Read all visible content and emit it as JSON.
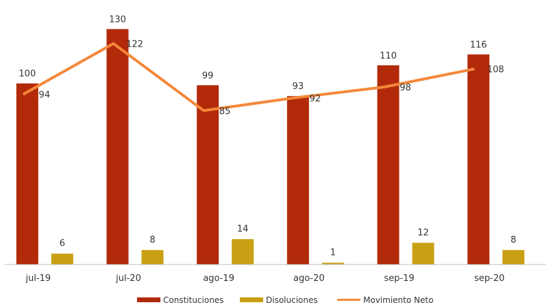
{
  "chart_data": {
    "type": "bar",
    "categories": [
      "jul-19",
      "jul-20",
      "ago-19",
      "ago-20",
      "sep-19",
      "sep-20"
    ],
    "series": [
      {
        "name": "Constituciones",
        "kind": "bar",
        "color": "#b22a0a",
        "values": [
          100,
          130,
          99,
          93,
          110,
          116
        ]
      },
      {
        "name": "Disoluciones",
        "kind": "bar",
        "color": "#c9a013",
        "values": [
          6,
          8,
          14,
          1,
          12,
          8
        ]
      },
      {
        "name": "Movimiento Neto",
        "kind": "line",
        "color": "#f4883a",
        "values": [
          94,
          122,
          85,
          92,
          98,
          108
        ]
      }
    ],
    "ylim": [
      0,
      140
    ],
    "grid": false,
    "legend": "bottom"
  }
}
